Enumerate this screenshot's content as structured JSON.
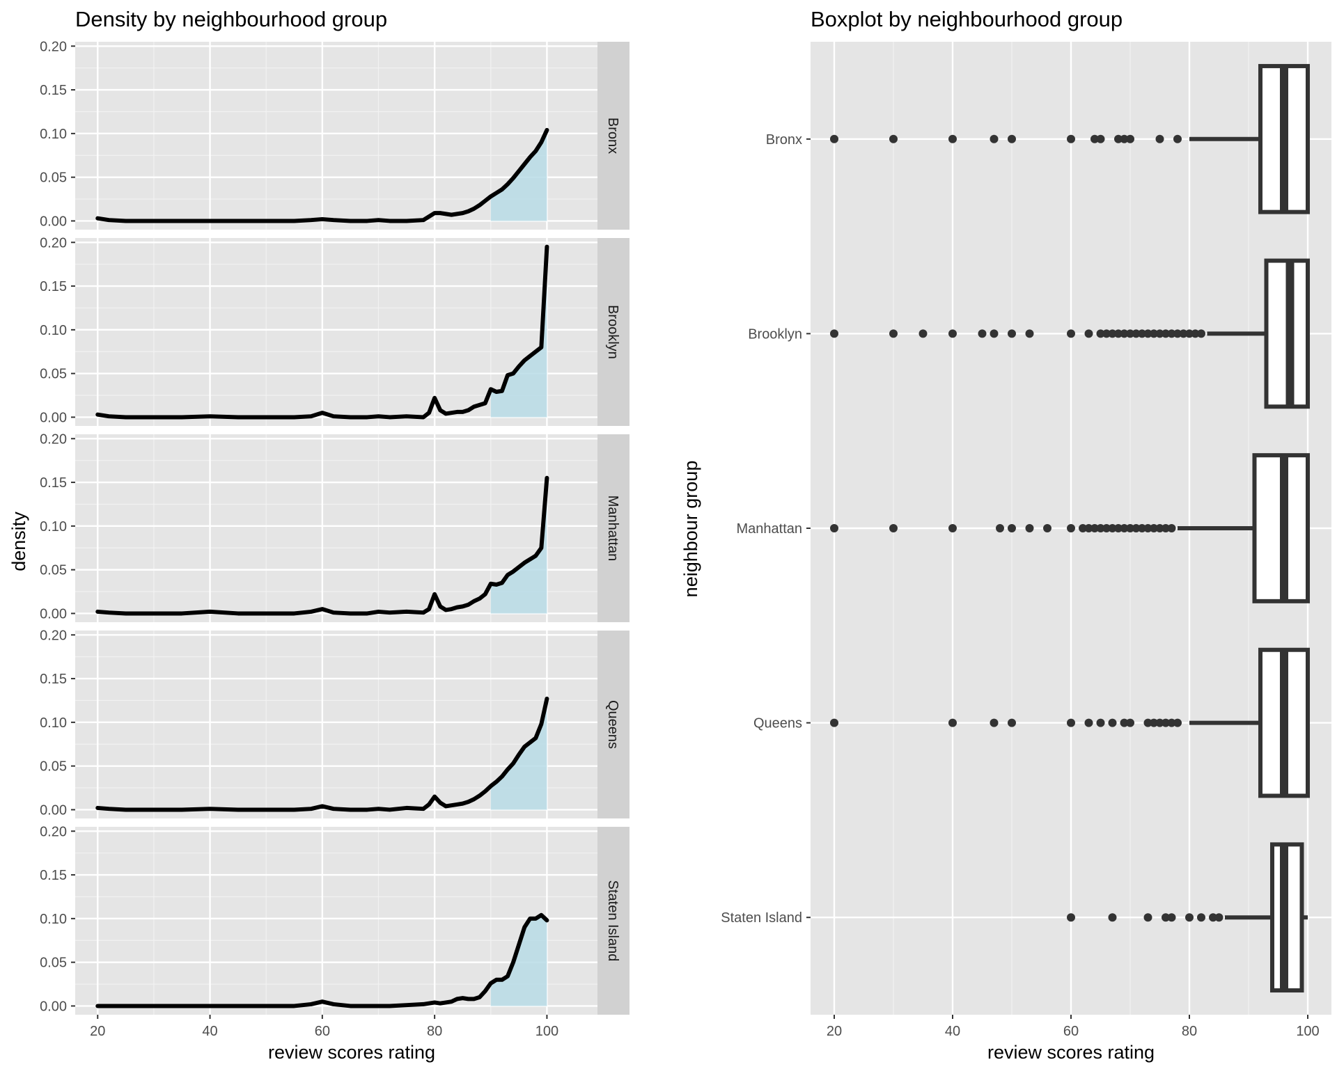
{
  "chart_data": [
    {
      "type": "area",
      "title": "Density by neighbourhood group",
      "xlabel": "review scores rating",
      "ylabel": "density",
      "xlim": [
        16,
        109
      ],
      "ylim": [
        -0.01,
        0.205
      ],
      "x_ticks": [
        20,
        40,
        60,
        80,
        100
      ],
      "x_tick_labels": [
        "20",
        "40",
        "60",
        "80",
        "100"
      ],
      "y_ticks": [
        0,
        0.05,
        0.1,
        0.15,
        0.2
      ],
      "y_tick_labels": [
        "0.00",
        "0.05",
        "0.10",
        "0.15",
        "0.20"
      ],
      "grid": true,
      "colors": {
        "panel_bg": "#e5e5e5",
        "strip_bg": "#d1d1d1",
        "fill": "#b9dce6",
        "line": "#000000"
      },
      "fill_from_x": 90,
      "x": [
        20,
        22,
        25,
        30,
        35,
        40,
        45,
        50,
        55,
        58,
        60,
        62,
        65,
        68,
        70,
        72,
        75,
        78,
        79,
        80,
        81,
        82,
        83,
        84,
        85,
        86,
        87,
        88,
        89,
        90,
        91,
        92,
        93,
        94,
        95,
        96,
        97,
        98,
        99,
        100
      ],
      "panels": [
        {
          "name": "Bronx",
          "values": [
            0.003,
            0.001,
            0,
            0,
            0,
            0,
            0,
            0,
            0,
            0.001,
            0.002,
            0.001,
            0,
            0,
            0.001,
            0,
            0,
            0.001,
            0.005,
            0.009,
            0.009,
            0.008,
            0.007,
            0.008,
            0.009,
            0.011,
            0.014,
            0.018,
            0.023,
            0.028,
            0.032,
            0.036,
            0.042,
            0.049,
            0.057,
            0.065,
            0.073,
            0.08,
            0.09,
            0.104
          ]
        },
        {
          "name": "Brooklyn",
          "values": [
            0.003,
            0.001,
            0,
            0,
            0,
            0.001,
            0,
            0,
            0,
            0.001,
            0.005,
            0.001,
            0,
            0,
            0.001,
            0,
            0.001,
            0,
            0.005,
            0.022,
            0.008,
            0.004,
            0.005,
            0.006,
            0.006,
            0.008,
            0.012,
            0.014,
            0.016,
            0.032,
            0.029,
            0.03,
            0.048,
            0.05,
            0.058,
            0.065,
            0.07,
            0.075,
            0.08,
            0.195
          ]
        },
        {
          "name": "Manhattan",
          "values": [
            0.002,
            0.001,
            0,
            0,
            0,
            0.002,
            0,
            0,
            0,
            0.002,
            0.005,
            0.001,
            0,
            0,
            0.002,
            0.001,
            0.002,
            0.001,
            0.005,
            0.022,
            0.008,
            0.004,
            0.005,
            0.007,
            0.008,
            0.01,
            0.014,
            0.017,
            0.022,
            0.034,
            0.033,
            0.035,
            0.044,
            0.048,
            0.053,
            0.058,
            0.062,
            0.066,
            0.075,
            0.155
          ]
        },
        {
          "name": "Queens",
          "values": [
            0.002,
            0.001,
            0,
            0,
            0,
            0.001,
            0,
            0,
            0,
            0.001,
            0.004,
            0.001,
            0,
            0,
            0.001,
            0,
            0.002,
            0.001,
            0.006,
            0.015,
            0.008,
            0.004,
            0.005,
            0.006,
            0.007,
            0.009,
            0.012,
            0.016,
            0.021,
            0.027,
            0.032,
            0.038,
            0.046,
            0.053,
            0.063,
            0.072,
            0.077,
            0.082,
            0.098,
            0.127
          ]
        },
        {
          "name": "Staten Island",
          "values": [
            0,
            0,
            0,
            0,
            0,
            0,
            0,
            0,
            0,
            0.002,
            0.005,
            0.002,
            0,
            0,
            0,
            0,
            0.001,
            0.002,
            0.003,
            0.004,
            0.003,
            0.004,
            0.005,
            0.008,
            0.009,
            0.008,
            0.008,
            0.01,
            0.017,
            0.026,
            0.03,
            0.03,
            0.034,
            0.05,
            0.07,
            0.09,
            0.1,
            0.1,
            0.104,
            0.098
          ]
        }
      ]
    },
    {
      "type": "box",
      "title": "Boxplot by neighbourhood group",
      "xlabel": "review scores rating",
      "ylabel": "neighbour group",
      "xlim": [
        16,
        104
      ],
      "x_ticks": [
        20,
        40,
        60,
        80,
        100
      ],
      "x_tick_labels": [
        "20",
        "40",
        "60",
        "80",
        "100"
      ],
      "categories": [
        "Bronx",
        "Brooklyn",
        "Manhattan",
        "Queens",
        "Staten Island"
      ],
      "grid": true,
      "colors": {
        "panel_bg": "#e5e5e5",
        "box_line": "#333333",
        "box_fill": "#ffffff",
        "point": "#333333"
      },
      "boxes": [
        {
          "name": "Bronx",
          "whisker_low": 80,
          "q1": 92,
          "median": 96,
          "q3": 100,
          "whisker_high": 100,
          "outliers": [
            20,
            30,
            40,
            47,
            50,
            60,
            64,
            65,
            68,
            69,
            70,
            75,
            78
          ]
        },
        {
          "name": "Brooklyn",
          "whisker_low": 83,
          "q1": 93,
          "median": 97,
          "q3": 100,
          "whisker_high": 100,
          "outliers": [
            20,
            30,
            35,
            40,
            45,
            47,
            50,
            53,
            60,
            63,
            65,
            66,
            67,
            68,
            69,
            70,
            71,
            72,
            73,
            74,
            75,
            76,
            77,
            78,
            79,
            80,
            81,
            82
          ]
        },
        {
          "name": "Manhattan",
          "whisker_low": 78,
          "q1": 91,
          "median": 96,
          "q3": 100,
          "whisker_high": 100,
          "outliers": [
            20,
            30,
            40,
            48,
            50,
            53,
            56,
            60,
            62,
            63,
            64,
            65,
            66,
            67,
            68,
            69,
            70,
            71,
            72,
            73,
            74,
            75,
            76,
            77
          ]
        },
        {
          "name": "Queens",
          "whisker_low": 80,
          "q1": 92,
          "median": 96,
          "q3": 100,
          "whisker_high": 100,
          "outliers": [
            20,
            40,
            47,
            50,
            60,
            63,
            65,
            67,
            69,
            70,
            73,
            74,
            75,
            76,
            77,
            78
          ]
        },
        {
          "name": "Staten Island",
          "whisker_low": 86,
          "q1": 94,
          "median": 96,
          "q3": 99,
          "whisker_high": 100,
          "outliers": [
            60,
            67,
            73,
            76,
            77,
            80,
            82,
            84,
            85
          ]
        }
      ]
    }
  ]
}
